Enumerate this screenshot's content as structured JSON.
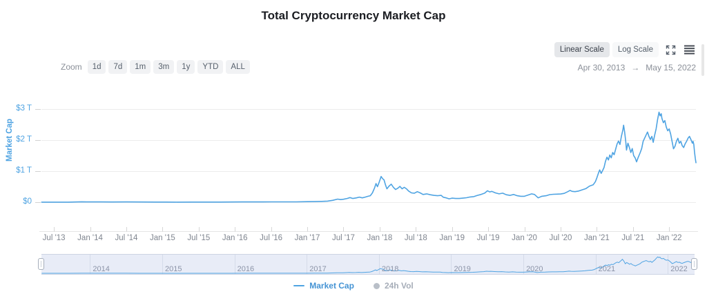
{
  "title": "Total Cryptocurrency Market Cap",
  "toolbar": {
    "scale_options": [
      {
        "label": "Linear Scale",
        "active": true
      },
      {
        "label": "Log Scale",
        "active": false
      }
    ],
    "icons": [
      "fullscreen-icon",
      "hamburger-menu-icon"
    ],
    "zoom_label": "Zoom",
    "zoom_buttons": [
      "1d",
      "7d",
      "1m",
      "3m",
      "1y",
      "YTD",
      "ALL"
    ],
    "date_range": {
      "start": "Apr 30, 2013",
      "separator": "→",
      "end": "May 15, 2022"
    }
  },
  "legend": [
    {
      "label": "Market Cap",
      "marker": "line",
      "color": "#4ea3e2",
      "text_color": "#4493d4",
      "active": true
    },
    {
      "label": "24h Vol",
      "marker": "circle",
      "color": "#b9bfc8",
      "text_color": "#a6adb8",
      "active": false
    }
  ],
  "colors": {
    "series_blue": "#4ea3e2",
    "grid": "#ececec",
    "navigator_bg": "#e8ecf7",
    "navigator_grid": "#d5dbe9",
    "navigator_border": "#ccd3e3"
  },
  "chart_data": {
    "type": "line",
    "title": "Total Cryptocurrency Market Cap",
    "xlabel": "",
    "ylabel": "Market Cap",
    "unit": "USD trillions",
    "x_range_label": [
      "Apr 30, 2013",
      "May 15, 2022"
    ],
    "xlim": [
      2013.327,
      2022.37
    ],
    "ylim": [
      0,
      3.3
    ],
    "grid": true,
    "legend_position": "bottom",
    "y_ticks": [
      {
        "label": "$0",
        "value": 0
      },
      {
        "label": "$1 T",
        "value": 1
      },
      {
        "label": "$2 T",
        "value": 2
      },
      {
        "label": "$3 T",
        "value": 3
      }
    ],
    "x_ticks": [
      {
        "label": "Jul '13",
        "t": 2013.5
      },
      {
        "label": "Jan '14",
        "t": 2014.0
      },
      {
        "label": "Jul '14",
        "t": 2014.5
      },
      {
        "label": "Jan '15",
        "t": 2015.0
      },
      {
        "label": "Jul '15",
        "t": 2015.5
      },
      {
        "label": "Jan '16",
        "t": 2016.0
      },
      {
        "label": "Jul '16",
        "t": 2016.5
      },
      {
        "label": "Jan '17",
        "t": 2017.0
      },
      {
        "label": "Jul '17",
        "t": 2017.5
      },
      {
        "label": "Jan '18",
        "t": 2018.0
      },
      {
        "label": "Jul '18",
        "t": 2018.5
      },
      {
        "label": "Jan '19",
        "t": 2019.0
      },
      {
        "label": "Jul '19",
        "t": 2019.5
      },
      {
        "label": "Jan '20",
        "t": 2020.0
      },
      {
        "label": "Jul '20",
        "t": 2020.5
      },
      {
        "label": "Jan '21",
        "t": 2021.0
      },
      {
        "label": "Jul '21",
        "t": 2021.5
      },
      {
        "label": "Jan '22",
        "t": 2022.0
      }
    ],
    "navigator_years": [
      2014,
      2015,
      2016,
      2017,
      2018,
      2019,
      2020,
      2021,
      2022
    ],
    "series": [
      {
        "name": "Market Cap",
        "color": "#4ea3e2",
        "visible": true,
        "points": [
          [
            2013.33,
            0.0015
          ],
          [
            2013.5,
            0.0015
          ],
          [
            2013.7,
            0.002
          ],
          [
            2013.88,
            0.013
          ],
          [
            2013.95,
            0.01
          ],
          [
            2014.0,
            0.011
          ],
          [
            2014.15,
            0.008
          ],
          [
            2014.3,
            0.007
          ],
          [
            2014.5,
            0.008
          ],
          [
            2014.7,
            0.006
          ],
          [
            2014.9,
            0.005
          ],
          [
            2015.05,
            0.004
          ],
          [
            2015.2,
            0.003
          ],
          [
            2015.4,
            0.004
          ],
          [
            2015.6,
            0.004
          ],
          [
            2015.8,
            0.004
          ],
          [
            2015.95,
            0.006
          ],
          [
            2016.1,
            0.008
          ],
          [
            2016.3,
            0.009
          ],
          [
            2016.5,
            0.012
          ],
          [
            2016.7,
            0.011
          ],
          [
            2016.85,
            0.012
          ],
          [
            2017.0,
            0.017
          ],
          [
            2017.1,
            0.02
          ],
          [
            2017.2,
            0.027
          ],
          [
            2017.28,
            0.035
          ],
          [
            2017.35,
            0.06
          ],
          [
            2017.42,
            0.1
          ],
          [
            2017.46,
            0.085
          ],
          [
            2017.5,
            0.095
          ],
          [
            2017.55,
            0.12
          ],
          [
            2017.59,
            0.15
          ],
          [
            2017.63,
            0.12
          ],
          [
            2017.68,
            0.14
          ],
          [
            2017.72,
            0.165
          ],
          [
            2017.76,
            0.14
          ],
          [
            2017.8,
            0.165
          ],
          [
            2017.84,
            0.19
          ],
          [
            2017.87,
            0.21
          ],
          [
            2017.9,
            0.3
          ],
          [
            2017.93,
            0.46
          ],
          [
            2017.95,
            0.6
          ],
          [
            2017.97,
            0.5
          ],
          [
            2017.99,
            0.62
          ],
          [
            2018.02,
            0.83
          ],
          [
            2018.04,
            0.76
          ],
          [
            2018.06,
            0.72
          ],
          [
            2018.08,
            0.56
          ],
          [
            2018.1,
            0.43
          ],
          [
            2018.13,
            0.52
          ],
          [
            2018.16,
            0.58
          ],
          [
            2018.19,
            0.48
          ],
          [
            2018.22,
            0.41
          ],
          [
            2018.25,
            0.45
          ],
          [
            2018.28,
            0.51
          ],
          [
            2018.31,
            0.43
          ],
          [
            2018.34,
            0.48
          ],
          [
            2018.37,
            0.43
          ],
          [
            2018.4,
            0.36
          ],
          [
            2018.44,
            0.3
          ],
          [
            2018.48,
            0.29
          ],
          [
            2018.52,
            0.34
          ],
          [
            2018.56,
            0.3
          ],
          [
            2018.6,
            0.25
          ],
          [
            2018.65,
            0.27
          ],
          [
            2018.7,
            0.24
          ],
          [
            2018.75,
            0.22
          ],
          [
            2018.8,
            0.21
          ],
          [
            2018.85,
            0.22
          ],
          [
            2018.88,
            0.16
          ],
          [
            2018.92,
            0.14
          ],
          [
            2018.96,
            0.11
          ],
          [
            2019.0,
            0.13
          ],
          [
            2019.05,
            0.12
          ],
          [
            2019.1,
            0.12
          ],
          [
            2019.15,
            0.13
          ],
          [
            2019.2,
            0.145
          ],
          [
            2019.25,
            0.17
          ],
          [
            2019.3,
            0.18
          ],
          [
            2019.35,
            0.22
          ],
          [
            2019.4,
            0.25
          ],
          [
            2019.45,
            0.29
          ],
          [
            2019.49,
            0.37
          ],
          [
            2019.52,
            0.33
          ],
          [
            2019.55,
            0.35
          ],
          [
            2019.6,
            0.3
          ],
          [
            2019.65,
            0.27
          ],
          [
            2019.7,
            0.29
          ],
          [
            2019.75,
            0.24
          ],
          [
            2019.8,
            0.22
          ],
          [
            2019.85,
            0.25
          ],
          [
            2019.9,
            0.21
          ],
          [
            2019.95,
            0.19
          ],
          [
            2020.0,
            0.19
          ],
          [
            2020.05,
            0.23
          ],
          [
            2020.1,
            0.27
          ],
          [
            2020.14,
            0.25
          ],
          [
            2020.19,
            0.14
          ],
          [
            2020.24,
            0.19
          ],
          [
            2020.3,
            0.21
          ],
          [
            2020.35,
            0.245
          ],
          [
            2020.4,
            0.255
          ],
          [
            2020.45,
            0.26
          ],
          [
            2020.5,
            0.265
          ],
          [
            2020.55,
            0.285
          ],
          [
            2020.6,
            0.34
          ],
          [
            2020.63,
            0.38
          ],
          [
            2020.66,
            0.35
          ],
          [
            2020.7,
            0.34
          ],
          [
            2020.75,
            0.36
          ],
          [
            2020.8,
            0.4
          ],
          [
            2020.85,
            0.44
          ],
          [
            2020.9,
            0.52
          ],
          [
            2020.95,
            0.56
          ],
          [
            2020.98,
            0.66
          ],
          [
            2021.0,
            0.78
          ],
          [
            2021.02,
            0.92
          ],
          [
            2021.04,
            1.04
          ],
          [
            2021.06,
            0.93
          ],
          [
            2021.08,
            1.02
          ],
          [
            2021.1,
            1.12
          ],
          [
            2021.12,
            1.32
          ],
          [
            2021.14,
            1.45
          ],
          [
            2021.16,
            1.36
          ],
          [
            2021.18,
            1.52
          ],
          [
            2021.2,
            1.43
          ],
          [
            2021.22,
            1.6
          ],
          [
            2021.24,
            1.53
          ],
          [
            2021.26,
            1.7
          ],
          [
            2021.28,
            1.87
          ],
          [
            2021.3,
            1.97
          ],
          [
            2021.32,
            1.86
          ],
          [
            2021.34,
            2.12
          ],
          [
            2021.36,
            2.32
          ],
          [
            2021.37,
            2.48
          ],
          [
            2021.385,
            2.26
          ],
          [
            2021.4,
            1.96
          ],
          [
            2021.41,
            1.68
          ],
          [
            2021.43,
            1.9
          ],
          [
            2021.45,
            1.76
          ],
          [
            2021.47,
            1.6
          ],
          [
            2021.49,
            1.73
          ],
          [
            2021.51,
            1.5
          ],
          [
            2021.53,
            1.43
          ],
          [
            2021.55,
            1.3
          ],
          [
            2021.57,
            1.43
          ],
          [
            2021.6,
            1.6
          ],
          [
            2021.62,
            1.73
          ],
          [
            2021.64,
            1.96
          ],
          [
            2021.66,
            2.06
          ],
          [
            2021.68,
            2.16
          ],
          [
            2021.7,
            2.26
          ],
          [
            2021.72,
            2.12
          ],
          [
            2021.74,
            2.02
          ],
          [
            2021.76,
            2.12
          ],
          [
            2021.78,
            1.93
          ],
          [
            2021.8,
            2.16
          ],
          [
            2021.82,
            2.36
          ],
          [
            2021.84,
            2.66
          ],
          [
            2021.86,
            2.9
          ],
          [
            2021.875,
            2.78
          ],
          [
            2021.89,
            2.85
          ],
          [
            2021.9,
            2.7
          ],
          [
            2021.92,
            2.56
          ],
          [
            2021.94,
            2.63
          ],
          [
            2021.96,
            2.42
          ],
          [
            2021.98,
            2.3
          ],
          [
            2022.0,
            2.36
          ],
          [
            2022.02,
            2.2
          ],
          [
            2022.04,
            1.96
          ],
          [
            2022.06,
            1.72
          ],
          [
            2022.08,
            1.8
          ],
          [
            2022.1,
            1.96
          ],
          [
            2022.12,
            2.06
          ],
          [
            2022.14,
            1.9
          ],
          [
            2022.16,
            1.96
          ],
          [
            2022.18,
            1.82
          ],
          [
            2022.2,
            1.76
          ],
          [
            2022.22,
            1.88
          ],
          [
            2022.24,
            1.96
          ],
          [
            2022.26,
            2.06
          ],
          [
            2022.28,
            2.12
          ],
          [
            2022.3,
            2.02
          ],
          [
            2022.32,
            1.9
          ],
          [
            2022.33,
            1.96
          ],
          [
            2022.34,
            1.86
          ],
          [
            2022.35,
            1.62
          ],
          [
            2022.36,
            1.42
          ],
          [
            2022.37,
            1.27
          ]
        ]
      },
      {
        "name": "24h Vol",
        "color": "#b9bfc8",
        "visible": false,
        "points": []
      }
    ]
  }
}
